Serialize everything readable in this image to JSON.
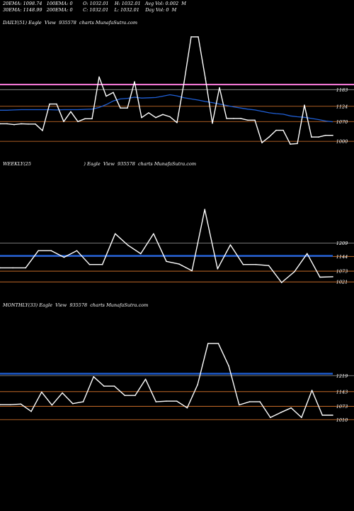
{
  "header": {
    "line1": {
      "ema20": "20EMA: 1098.74",
      "ema100": "100EMA: 0",
      "open": "O: 1032.01",
      "high": "H: 1032.01",
      "avgvol": "Avg Vol: 0.002  M"
    },
    "line2": {
      "ema30": "30EMA: 1148.99",
      "ema200": "200EMA: 0",
      "close": "C: 1032.01",
      "low": "L: 1032.01",
      "dayvol": "Day Vol: 0  M"
    }
  },
  "panels": {
    "daily": {
      "label": "DAILY(51) Eagle  View  935578  charts MunafaSutra.com"
    },
    "weekly": {
      "label": "WEEKLY(25                                    ) Eagle  View  935578  charts MunafaSutra.com"
    },
    "monthly": {
      "label": "MONTHLY(33) Eagle  View  935578  charts MunafaSutra.com"
    }
  },
  "colors": {
    "price": "#ffffff",
    "ema": "#1f5fd6",
    "level_line": "#e07a2e",
    "magenta": "#ff7de0",
    "grey_line": "#9a9a9a"
  },
  "chart_data": [
    {
      "type": "line",
      "name": "daily",
      "ylim": [
        960,
        1400
      ],
      "levels": [
        1183,
        1124,
        1070,
        1000
      ],
      "price": [
        1062,
        1062,
        1059,
        1062,
        1061,
        1061,
        1038,
        1132,
        1132,
        1070,
        1105,
        1070,
        1080,
        1080,
        1228,
        1160,
        1173,
        1118,
        1118,
        1211,
        1084,
        1101,
        1084,
        1095,
        1087,
        1066,
        1209,
        1370,
        1370,
        1224,
        1064,
        1190,
        1081,
        1081,
        1081,
        1075,
        1075,
        995,
        1015,
        1039,
        1039,
        990,
        992,
        1128,
        1015,
        1015,
        1021,
        1021
      ],
      "ema": [
        1110,
        1110,
        1111,
        1112,
        1112,
        1112,
        1112,
        1112,
        1111,
        1112,
        1112,
        1112,
        1113,
        1114,
        1120,
        1130,
        1143,
        1150,
        1152,
        1156,
        1153,
        1154,
        1155,
        1160,
        1165,
        1161,
        1154,
        1150,
        1146,
        1141,
        1137,
        1132,
        1127,
        1122,
        1118,
        1114,
        1111,
        1106,
        1101,
        1098,
        1096,
        1090,
        1087,
        1085,
        1081,
        1077,
        1072,
        1069
      ],
      "magenta_level": 1201
    },
    {
      "type": "line",
      "name": "weekly",
      "ylim": [
        960,
        1560
      ],
      "levels": [
        1209,
        1144,
        1073,
        1021
      ],
      "price": [
        1089,
        1089,
        1089,
        1172,
        1172,
        1140,
        1172,
        1105,
        1105,
        1254,
        1198,
        1157,
        1254,
        1120,
        1107,
        1075,
        1371,
        1084,
        1200,
        1105,
        1105,
        1100,
        1018,
        1070,
        1158,
        1044,
        1046
      ],
      "ema": [
        1147,
        1147,
        1147,
        1147,
        1147,
        1147,
        1147,
        1147,
        1147,
        1147,
        1147,
        1147,
        1147,
        1147,
        1147,
        1147,
        1147,
        1147,
        1147,
        1147,
        1147,
        1147,
        1147,
        1147,
        1147,
        1147,
        1147
      ]
    },
    {
      "type": "line",
      "name": "monthly",
      "ylim": [
        930,
        1520
      ],
      "levels": [
        1219,
        1143,
        1073,
        1010
      ],
      "price": [
        1081,
        1081,
        1084,
        1049,
        1141,
        1079,
        1137,
        1086,
        1095,
        1214,
        1169,
        1169,
        1125,
        1125,
        1202,
        1095,
        1098,
        1098,
        1066,
        1176,
        1372,
        1372,
        1265,
        1080,
        1095,
        1095,
        1020,
        1044,
        1066,
        1020,
        1149,
        1031,
        1031
      ],
      "ema": [
        1228,
        1228,
        1228,
        1228,
        1228,
        1228,
        1228,
        1228,
        1228,
        1228,
        1228,
        1228,
        1228,
        1228,
        1228,
        1228,
        1228,
        1228,
        1228,
        1228,
        1228,
        1228,
        1228,
        1228,
        1228,
        1228,
        1228,
        1228,
        1228,
        1228,
        1228,
        1228,
        1228
      ]
    }
  ]
}
